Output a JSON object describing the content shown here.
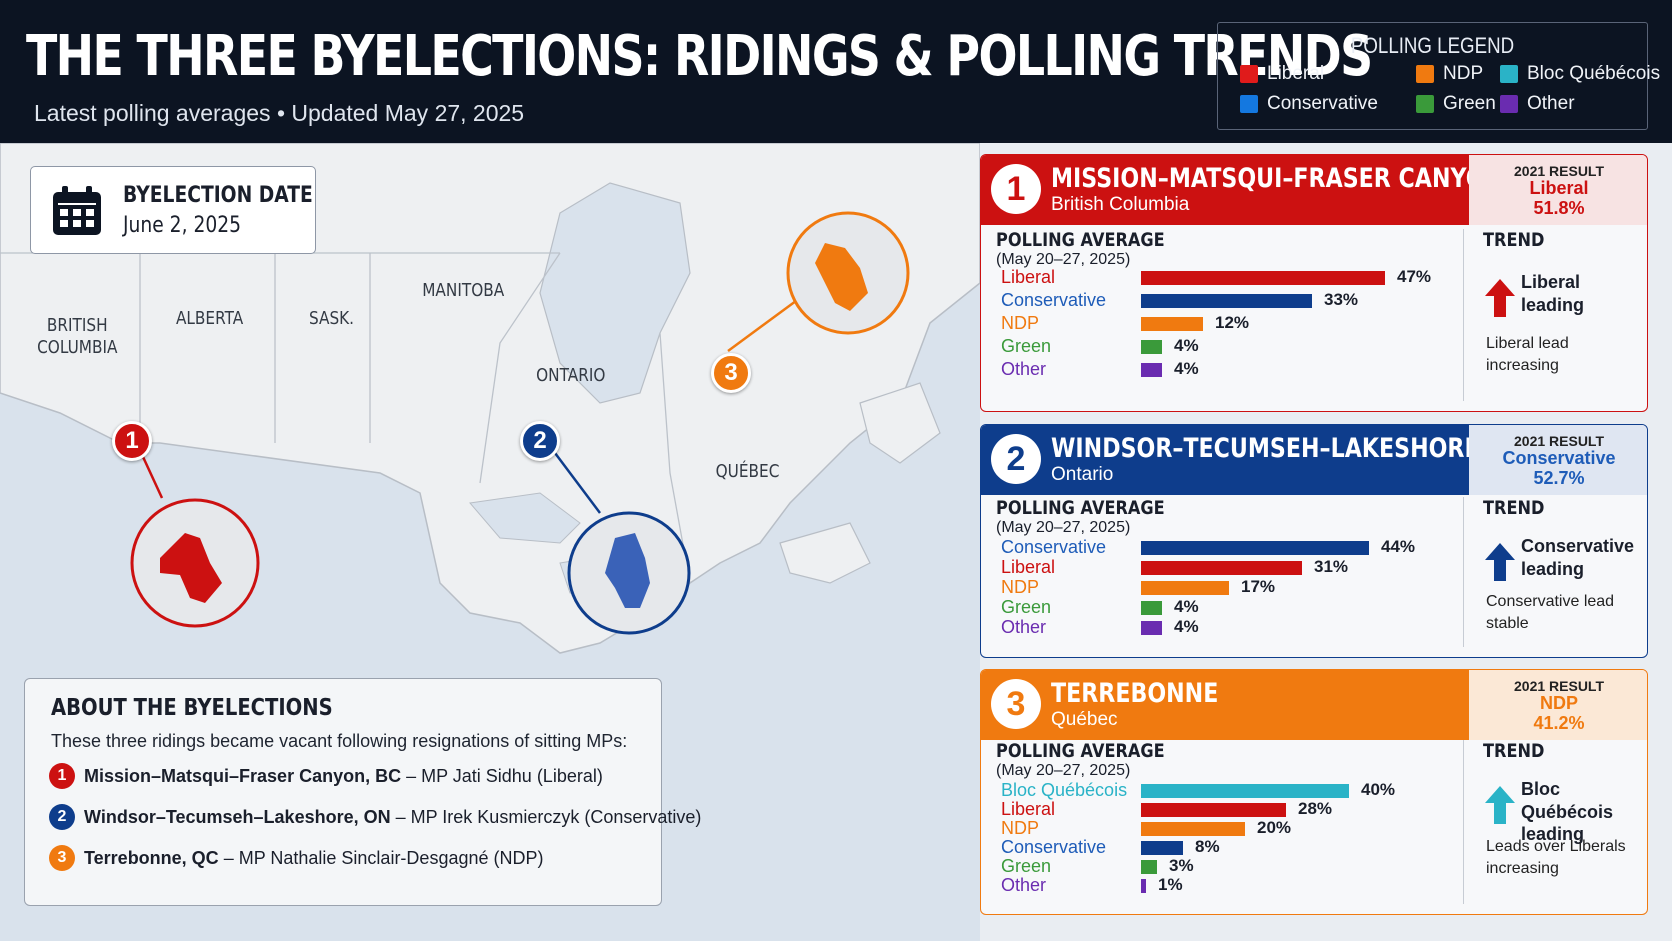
{
  "header": {
    "title": "THE THREE BYELECTIONS: RIDINGS & POLLING TRENDS",
    "subtitle": "Latest polling averages • Updated May 27, 2025"
  },
  "legend": {
    "title": "POLLING LEGEND",
    "items": [
      {
        "label": "Liberal",
        "color": "#e01b1b"
      },
      {
        "label": "NDP",
        "color": "#f07a10"
      },
      {
        "label": "Bloc Québécois",
        "color": "#2ab3c7"
      },
      {
        "label": "Conservative",
        "color": "#1478e0"
      },
      {
        "label": "Green",
        "color": "#3a9a3a"
      },
      {
        "label": "Other",
        "color": "#6a2cb0"
      }
    ]
  },
  "map": {
    "provinces": {
      "bc": "BRITISH\nCOLUMBIA",
      "ab": "ALBERTA",
      "sk": "SASK.",
      "mb": "MANITOBA",
      "on": "ONTARIO",
      "qc": "QUÉBEC"
    },
    "pins": [
      "1",
      "2",
      "3"
    ]
  },
  "byelection_date": {
    "label": "BYELECTION DATE",
    "value": "June 2, 2025"
  },
  "about": {
    "title": "ABOUT THE BYELECTIONS",
    "intro": "These three ridings became vacant following resignations of sitting MPs:",
    "items": [
      {
        "num": "1",
        "riding": "Mission–Matsqui–Fraser Canyon, BC",
        "detail": " – MP Jati Sidhu (Liberal)"
      },
      {
        "num": "2",
        "riding": "Windsor–Tecumseh–Lakeshore, ON",
        "detail": " – MP Irek Kusmierczyk (Conservative)"
      },
      {
        "num": "3",
        "riding": "Terrebonne, QC",
        "detail": " – MP Nathalie Sinclair-Desgagné (NDP)"
      }
    ]
  },
  "colors": {
    "liberal": "#cc1111",
    "conservative": "#0e3d8c",
    "ndp": "#f07a10",
    "green": "#3a9a3a",
    "bloc": "#2ab3c7",
    "other": "#6a2cb0"
  },
  "ridings": [
    {
      "num": "1",
      "name": "MISSION–MATSQUI–FRASER CANYON",
      "province": "British Columbia",
      "result_label": "2021 RESULT",
      "result_party": "Liberal",
      "result_pct": "51.8%",
      "poll_title": "POLLING AVERAGE",
      "poll_range": "(May 20–27, 2025)",
      "polls": [
        {
          "party": "Liberal",
          "value": 47,
          "label": "47%"
        },
        {
          "party": "Conservative",
          "value": 33,
          "label": "33%"
        },
        {
          "party": "NDP",
          "value": 12,
          "label": "12%"
        },
        {
          "party": "Green",
          "value": 4,
          "label": "4%"
        },
        {
          "party": "Other",
          "value": 4,
          "label": "4%"
        }
      ],
      "trend_title": "TREND",
      "trend_head": "Liberal leading",
      "trend_note": "Liberal lead increasing"
    },
    {
      "num": "2",
      "name": "WINDSOR–TECUMSEH–LAKESHORE",
      "province": "Ontario",
      "result_label": "2021 RESULT",
      "result_party": "Conservative",
      "result_pct": "52.7%",
      "poll_title": "POLLING AVERAGE",
      "poll_range": "(May 20–27, 2025)",
      "polls": [
        {
          "party": "Conservative",
          "value": 44,
          "label": "44%"
        },
        {
          "party": "Liberal",
          "value": 31,
          "label": "31%"
        },
        {
          "party": "NDP",
          "value": 17,
          "label": "17%"
        },
        {
          "party": "Green",
          "value": 4,
          "label": "4%"
        },
        {
          "party": "Other",
          "value": 4,
          "label": "4%"
        }
      ],
      "trend_title": "TREND",
      "trend_head": "Conservative leading",
      "trend_note": "Conservative lead stable"
    },
    {
      "num": "3",
      "name": "TERREBONNE",
      "province": "Québec",
      "result_label": "2021 RESULT",
      "result_party": "NDP",
      "result_pct": "41.2%",
      "poll_title": "POLLING AVERAGE",
      "poll_range": "(May 20–27, 2025)",
      "polls": [
        {
          "party": "Bloc Québécois",
          "value": 40,
          "label": "40%"
        },
        {
          "party": "Liberal",
          "value": 28,
          "label": "28%"
        },
        {
          "party": "NDP",
          "value": 20,
          "label": "20%"
        },
        {
          "party": "Conservative",
          "value": 8,
          "label": "8%"
        },
        {
          "party": "Green",
          "value": 3,
          "label": "3%"
        },
        {
          "party": "Other",
          "value": 1,
          "label": "1%"
        }
      ],
      "trend_title": "TREND",
      "trend_head": "Bloc Québécois leading",
      "trend_note": "Leads over Liberals increasing"
    }
  ]
}
